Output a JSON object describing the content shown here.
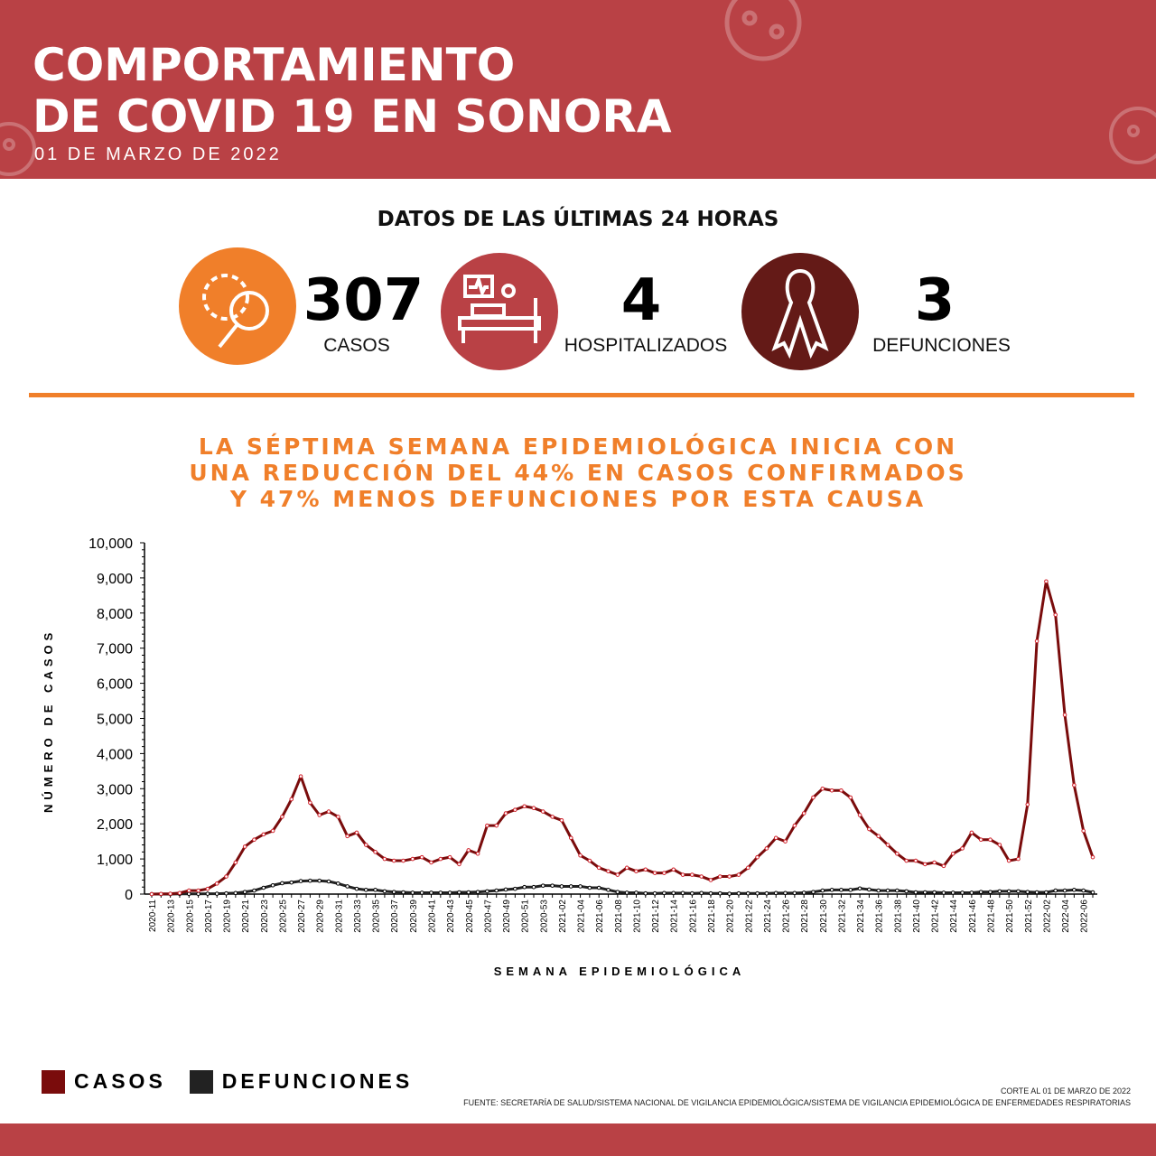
{
  "header": {
    "title_line1": "COMPORTAMIENTO",
    "title_line2": "DE COVID 19 EN SONORA",
    "date": "01 DE MARZO DE 2022"
  },
  "summary": {
    "heading": "DATOS DE LAS ÚLTIMAS 24 HORAS",
    "stats": [
      {
        "value": "307",
        "label": "CASOS",
        "icon": "virus-search-icon",
        "color": "#f07f2a"
      },
      {
        "value": "4",
        "label": "HOSPITALIZADOS",
        "icon": "hospital-bed-icon",
        "color": "#b94145"
      },
      {
        "value": "3",
        "label": "DEFUNCIONES",
        "icon": "ribbon-icon",
        "color": "#641a17"
      }
    ]
  },
  "headline": {
    "line1": "LA SÉPTIMA SEMANA EPIDEMIOLÓGICA INICIA CON",
    "line2": "UNA REDUCCIÓN DEL 44% EN CASOS CONFIRMADOS",
    "line3": "Y 47% MENOS DEFUNCIONES POR ESTA CAUSA"
  },
  "chart_data": {
    "type": "line",
    "title": "",
    "xlabel": "SEMANA EPIDEMIOLÓGICA",
    "ylabel": "NÚMERO DE CASOS",
    "ylim": [
      0,
      10000
    ],
    "yticks": [
      "0",
      "1,000",
      "2,000",
      "3,000",
      "4,000",
      "5,000",
      "6,000",
      "7,000",
      "8,000",
      "9,000",
      "10,000"
    ],
    "x": [
      "2020-11",
      "2020-12",
      "2020-13",
      "2020-14",
      "2020-15",
      "2020-16",
      "2020-17",
      "2020-18",
      "2020-19",
      "2020-20",
      "2020-21",
      "2020-22",
      "2020-23",
      "2020-24",
      "2020-25",
      "2020-26",
      "2020-27",
      "2020-28",
      "2020-29",
      "2020-30",
      "2020-31",
      "2020-32",
      "2020-33",
      "2020-34",
      "2020-35",
      "2020-36",
      "2020-37",
      "2020-38",
      "2020-39",
      "2020-40",
      "2020-41",
      "2020-42",
      "2020-43",
      "2020-44",
      "2020-45",
      "2020-46",
      "2020-47",
      "2020-48",
      "2020-49",
      "2020-50",
      "2020-51",
      "2020-52",
      "2020-53",
      "2021-01",
      "2021-02",
      "2021-03",
      "2021-04",
      "2021-05",
      "2021-06",
      "2021-07",
      "2021-08",
      "2021-09",
      "2021-10",
      "2021-11",
      "2021-12",
      "2021-13",
      "2021-14",
      "2021-15",
      "2021-16",
      "2021-17",
      "2021-18",
      "2021-19",
      "2021-20",
      "2021-21",
      "2021-22",
      "2021-23",
      "2021-24",
      "2021-25",
      "2021-26",
      "2021-27",
      "2021-28",
      "2021-29",
      "2021-30",
      "2021-31",
      "2021-32",
      "2021-33",
      "2021-34",
      "2021-35",
      "2021-36",
      "2021-37",
      "2021-38",
      "2021-39",
      "2021-40",
      "2021-41",
      "2021-42",
      "2021-43",
      "2021-44",
      "2021-45",
      "2021-46",
      "2021-47",
      "2021-48",
      "2021-49",
      "2021-50",
      "2021-51",
      "2021-52",
      "2022-01",
      "2022-02",
      "2022-03",
      "2022-04",
      "2022-05",
      "2022-06",
      "2022-07"
    ],
    "series": [
      {
        "name": "CASOS",
        "color": "#7a0c0c",
        "values": [
          0,
          5,
          10,
          30,
          100,
          100,
          150,
          300,
          500,
          900,
          1350,
          1550,
          1700,
          1800,
          2200,
          2700,
          3350,
          2600,
          2250,
          2350,
          2200,
          1650,
          1750,
          1400,
          1200,
          1000,
          950,
          950,
          1000,
          1050,
          900,
          1000,
          1050,
          850,
          1250,
          1150,
          1950,
          1950,
          2300,
          2400,
          2500,
          2450,
          2350,
          2200,
          2100,
          1600,
          1100,
          950,
          750,
          650,
          550,
          750,
          650,
          700,
          600,
          600,
          700,
          550,
          550,
          500,
          400,
          500,
          500,
          550,
          750,
          1050,
          1300,
          1600,
          1500,
          1950,
          2300,
          2750,
          3000,
          2950,
          2950,
          2750,
          2250,
          1850,
          1650,
          1400,
          1150,
          950,
          950,
          850,
          900,
          800,
          1150,
          1300,
          1750,
          1550,
          1550,
          1400,
          950,
          1000,
          2550,
          7200,
          8900,
          7950,
          5100,
          3100,
          1800,
          1050
        ]
      },
      {
        "name": "DEFUNCIONES",
        "color": "#222222",
        "values": [
          0,
          0,
          0,
          5,
          5,
          5,
          10,
          10,
          20,
          30,
          60,
          100,
          180,
          250,
          310,
          330,
          370,
          380,
          380,
          360,
          300,
          220,
          150,
          120,
          120,
          80,
          60,
          50,
          40,
          40,
          40,
          40,
          40,
          50,
          50,
          60,
          80,
          100,
          130,
          150,
          200,
          200,
          240,
          240,
          220,
          220,
          220,
          180,
          180,
          120,
          60,
          40,
          40,
          20,
          20,
          30,
          30,
          30,
          20,
          30,
          20,
          20,
          10,
          20,
          20,
          20,
          20,
          30,
          30,
          30,
          40,
          60,
          100,
          120,
          120,
          120,
          160,
          130,
          100,
          100,
          100,
          80,
          50,
          50,
          50,
          40,
          40,
          40,
          40,
          60,
          60,
          80,
          80,
          80,
          60,
          50,
          50,
          100,
          100,
          120,
          100,
          50
        ]
      }
    ],
    "legend": "bottom-left",
    "grid": false
  },
  "footer": {
    "cut": "CORTE AL 01 DE MARZO DE 2022",
    "source": "FUENTE: SECRETARÍA DE SALUD/SISTEMA NACIONAL DE VIGILANCIA EPIDEMIOLÓGICA/SISTEMA DE VIGILANCIA EPIDEMIOLÓGICA DE ENFERMEDADES RESPIRATORIAS"
  }
}
